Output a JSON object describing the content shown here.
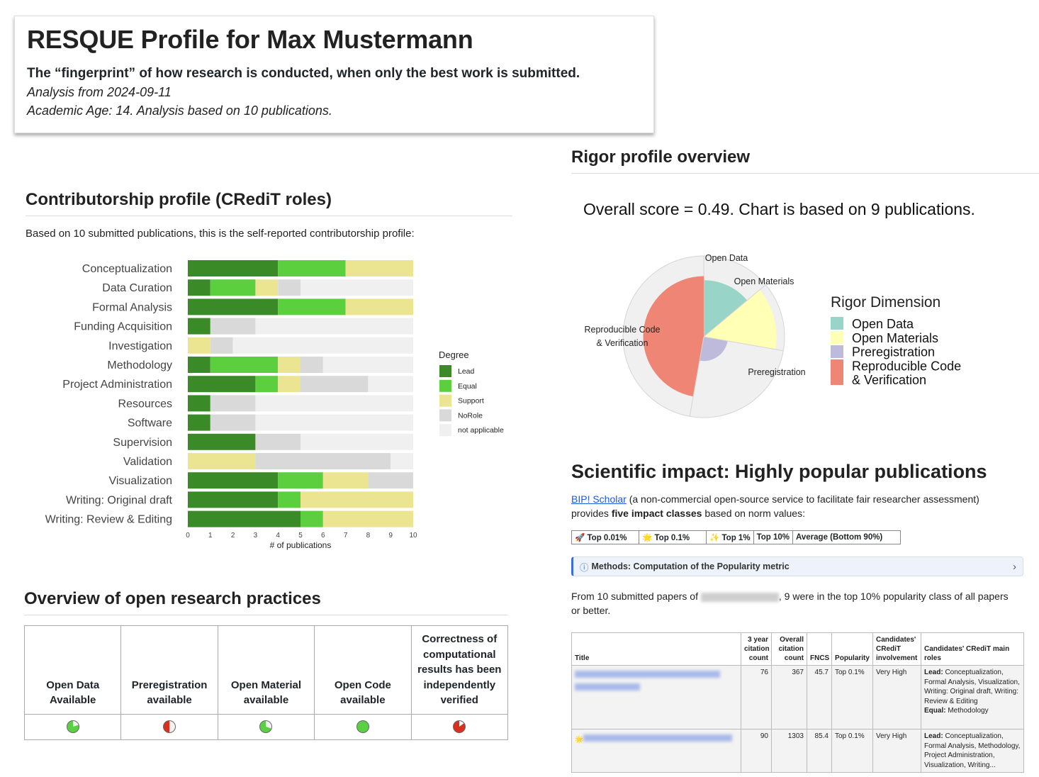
{
  "header": {
    "title": "RESQUE Profile for Max Mustermann",
    "subtitle": "The “fingerprint” of how research is conducted, when only the best work is submitted.",
    "analysis_date": "Analysis from 2024-09-11",
    "academic_age": "Academic Age: 14. Analysis based on 10 publications."
  },
  "contributorship": {
    "heading": "Contributorship profile (CRediT roles)",
    "intro": "Based on 10 submitted publications, this is the self-reported contributorship profile:"
  },
  "chart_data": [
    {
      "type": "bar",
      "orientation": "horizontal",
      "stacked": true,
      "categories": [
        "Conceptualization",
        "Data Curation",
        "Formal Analysis",
        "Funding Acquisition",
        "Investigation",
        "Methodology",
        "Project Administration",
        "Resources",
        "Software",
        "Supervision",
        "Validation",
        "Visualization",
        "Writing: Original draft",
        "Writing: Review & Editing"
      ],
      "series": [
        {
          "name": "Lead",
          "color": "#3a8a27",
          "values": [
            4,
            1,
            4,
            1,
            0,
            1,
            3,
            1,
            1,
            3,
            0,
            4,
            4,
            5
          ]
        },
        {
          "name": "Equal",
          "color": "#5ccf3e",
          "values": [
            3,
            2,
            3,
            0,
            0,
            3,
            1,
            0,
            0,
            0,
            0,
            2,
            1,
            1
          ]
        },
        {
          "name": "Support",
          "color": "#ebe491",
          "values": [
            3,
            1,
            3,
            0,
            1,
            1,
            1,
            0,
            0,
            0,
            3,
            2,
            5,
            4
          ]
        },
        {
          "name": "NoRole",
          "color": "#d9d9d9",
          "values": [
            0,
            1,
            0,
            2,
            1,
            1,
            3,
            2,
            2,
            2,
            6,
            2,
            0,
            0
          ]
        },
        {
          "name": "not applicable",
          "color": "#f0f0f0",
          "values": [
            0,
            5,
            0,
            7,
            8,
            4,
            2,
            7,
            7,
            5,
            1,
            0,
            0,
            0
          ]
        }
      ],
      "xlabel": "# of publications",
      "xlim": [
        0,
        10
      ],
      "xticks": [
        0,
        1,
        2,
        3,
        4,
        5,
        6,
        7,
        8,
        9,
        10
      ],
      "legend": {
        "title": "Degree",
        "position": "right"
      }
    },
    {
      "type": "pie",
      "subtype": "polar-area",
      "categories": [
        "Open Data",
        "Open Materials",
        "Preregistration",
        "Reproducible Code & Verification"
      ],
      "series_labels": [
        "Open Data",
        "Open Materials",
        "Preregistration",
        "Reproducible Code\n& Verification"
      ],
      "colors": [
        "#99d4c9",
        "#ffffb5",
        "#bebadb",
        "#ef8575"
      ],
      "values": [
        0.7,
        0.9,
        0.3,
        0.75
      ],
      "legend": {
        "title": "Rigor Dimension",
        "position": "right",
        "entries": [
          "Open Data",
          "Open Materials",
          "Preregistration",
          "Reproducible Code",
          "& Verification"
        ]
      }
    }
  ],
  "practices": {
    "heading": "Overview of open research practices",
    "columns": [
      {
        "label": "Open Data Available",
        "dot_color": "#5ad142",
        "partial": 0.2
      },
      {
        "label": "Preregistration available",
        "dot_color": "#d8301d",
        "partial": 0.5
      },
      {
        "label": "Open Material available",
        "dot_color": "#5ad142",
        "partial": 0.3
      },
      {
        "label": "Open Code available",
        "dot_color": "#5ad142",
        "partial": 0
      },
      {
        "label": "Correctness of computational results has been independently verified",
        "dot_color": "#d8301d",
        "partial": 0.15
      }
    ]
  },
  "rigor": {
    "heading": "Rigor profile overview",
    "score_text": "Overall score = 0.49. Chart is based on 9 publications."
  },
  "impact": {
    "heading": "Scientific impact: Highly popular publications",
    "link_text": "BIP! Scholar",
    "text_1": " (a non-commercial open-source service to facilitate fair researcher assessment) provides ",
    "bold_text": "five impact classes",
    "text_2": " based on norm values:",
    "classes": [
      "🚀 Top 0.01%",
      "🌟 Top 0.1%",
      "✨ Top 1%",
      "Top 10%",
      "Average (Bottom 90%)"
    ],
    "methods_label": "Methods: Computation of the Popularity metric",
    "from_text_1": "From 10 submitted papers of ",
    "from_text_2": ", 9 were in the top 10% popularity class of all papers or better."
  },
  "pub_table": {
    "headers": [
      "Title",
      "3 year citation count",
      "Overall citation count",
      "FNCS",
      "Popularity",
      "Candidates' CRediT involvement",
      "Candidates' CRediT main roles"
    ],
    "rows": [
      {
        "citations_3y": "76",
        "citations_total": "367",
        "fncs": "45.7",
        "popularity": "Top 0.1%",
        "involvement": "Very High",
        "lead_label": "Lead:",
        "lead_roles": " Conceptualization, Formal Analysis, Visualization, Writing: Original draft, Writing: Review & Editing",
        "equal_label": "Equal:",
        "equal_roles": " Methodology"
      },
      {
        "citations_3y": "90",
        "citations_total": "1303",
        "fncs": "85.4",
        "popularity": "Top 0.1%",
        "involvement": "Very High",
        "lead_label": "Lead:",
        "lead_roles": " Conceptualization, Formal Analysis, Methodology, Project Administration, Visualization, Writing...",
        "equal_label": "",
        "equal_roles": ""
      }
    ]
  }
}
